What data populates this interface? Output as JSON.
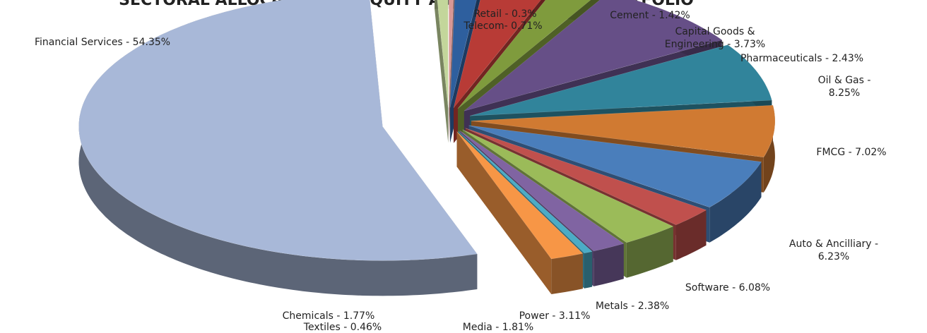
{
  "chart_data": {
    "type": "pie3d",
    "title": "SECTORAL ALLOCATION OF EQUITY AS A % OF EQUITY PORTFOLIO",
    "categories": [
      "Retail",
      "Cement",
      "Capital Goods & Engineering",
      "Pharmaceuticals",
      "Oil & Gas",
      "FMCG",
      "Auto & Ancilliary",
      "Software",
      "Metals",
      "Power",
      "Media",
      "Textiles",
      "Chemicals",
      "Financial Services",
      "Telecom"
    ],
    "values": [
      0.3,
      1.42,
      3.73,
      2.43,
      8.25,
      7.02,
      6.23,
      6.08,
      2.38,
      3.11,
      1.81,
      0.46,
      1.77,
      54.35,
      0.71
    ],
    "value_labels": [
      "Retail - 0.3%",
      "Cement - 1.42%",
      "Capital Goods &\nEngineering - 3.73%",
      "Pharmaceuticals - 2.43%",
      "Oil & Gas  - 8.25%",
      "FMCG - 7.02%",
      "Auto & Ancilliary  - 6.23%",
      "Software - 6.08%",
      "Metals - 2.38%",
      "Power - 3.11%",
      "Media - 1.81%",
      "Textiles - 0.46%",
      "Chemicals - 1.77%",
      "Financial Services - 54.35%",
      "Telecom- 0.71%"
    ],
    "colors": [
      "#d99795",
      "#2e5f9e",
      "#b83b36",
      "#7f9b3d",
      "#664f87",
      "#31849b",
      "#d07a32",
      "#4a7ebb",
      "#c0504d",
      "#9bbb59",
      "#8064a2",
      "#4bacc6",
      "#f79646",
      "#a8b8d8",
      "#c3d69b"
    ]
  }
}
